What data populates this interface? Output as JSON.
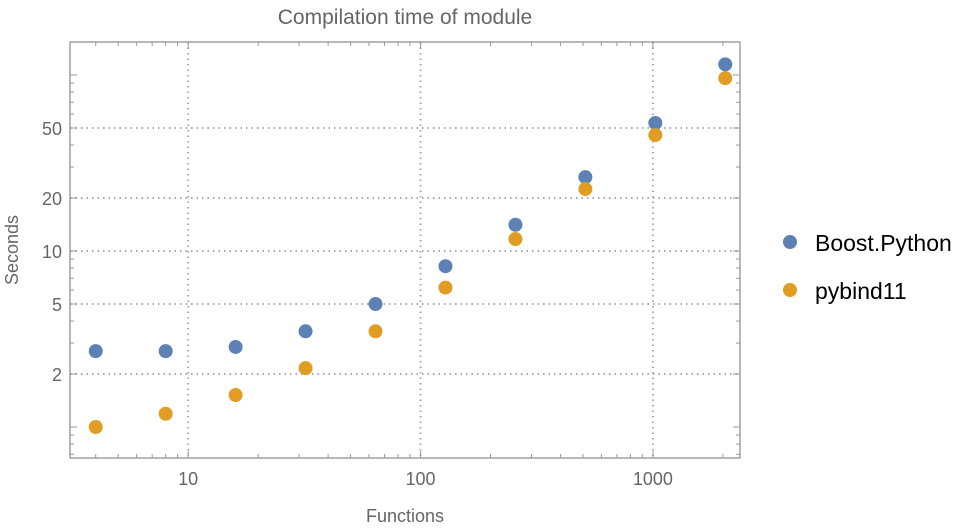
{
  "chart_data": {
    "type": "scatter",
    "title": "Compilation time of module",
    "xlabel": "Functions",
    "ylabel": "Seconds",
    "x_scale": "log",
    "y_scale": "log",
    "xlim": [
      3.1,
      2370
    ],
    "ylim": [
      0.667,
      154
    ],
    "grid": true,
    "legend_position": "right",
    "x_ticks": [
      {
        "value": 10,
        "label": "10"
      },
      {
        "value": 100,
        "label": "100"
      },
      {
        "value": 1000,
        "label": "1000"
      }
    ],
    "y_ticks": [
      {
        "value": 2,
        "label": "2"
      },
      {
        "value": 5,
        "label": "5"
      },
      {
        "value": 10,
        "label": "10"
      },
      {
        "value": 20,
        "label": "20"
      },
      {
        "value": 50,
        "label": "50"
      }
    ],
    "x": [
      4,
      8,
      16,
      32,
      64,
      128,
      256,
      512,
      1024,
      2048
    ],
    "series": [
      {
        "name": "Boost.Python",
        "color": "#5E81B5",
        "values": [
          2.7,
          2.7,
          2.85,
          3.5,
          5.0,
          8.2,
          14.1,
          26.3,
          53.4,
          115
        ]
      },
      {
        "name": "pybind11",
        "color": "#E19C24",
        "values": [
          1.0,
          1.19,
          1.52,
          2.16,
          3.5,
          6.2,
          11.7,
          22.5,
          45.6,
          96
        ]
      }
    ]
  }
}
